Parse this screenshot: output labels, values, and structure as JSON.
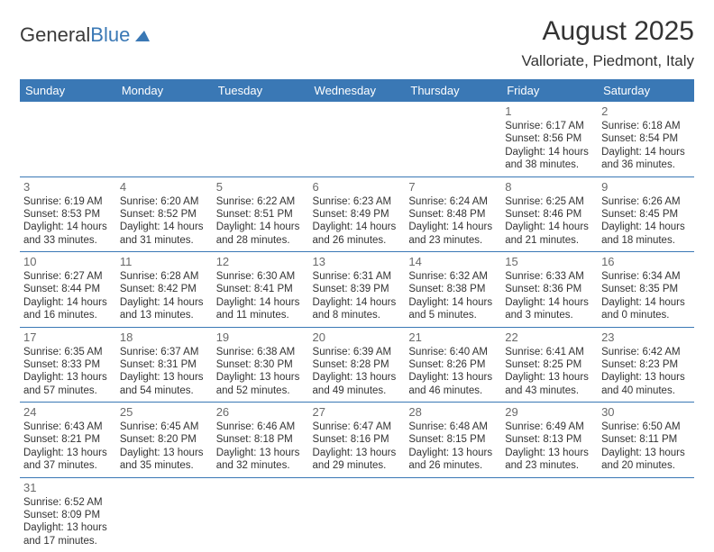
{
  "logo": {
    "text_dark": "General",
    "text_blue": "Blue"
  },
  "title": "August 2025",
  "location": "Valloriate, Piedmont, Italy",
  "colors": {
    "header_bg": "#3a78b5",
    "header_text": "#ffffff",
    "border": "#3a78b5",
    "daynum": "#6a6a6a",
    "body_text": "#333333",
    "logo_dark": "#3a3a3a",
    "logo_blue": "#3a78b5",
    "page_bg": "#ffffff"
  },
  "typography": {
    "title_fontsize": 30,
    "location_fontsize": 17,
    "weekday_fontsize": 13,
    "daynum_fontsize": 13,
    "cell_fontsize": 11.5,
    "font_family": "Arial"
  },
  "weekdays": [
    "Sunday",
    "Monday",
    "Tuesday",
    "Wednesday",
    "Thursday",
    "Friday",
    "Saturday"
  ],
  "weeks": [
    [
      null,
      null,
      null,
      null,
      null,
      {
        "n": "1",
        "sunrise": "Sunrise: 6:17 AM",
        "sunset": "Sunset: 8:56 PM",
        "daylight": "Daylight: 14 hours and 38 minutes."
      },
      {
        "n": "2",
        "sunrise": "Sunrise: 6:18 AM",
        "sunset": "Sunset: 8:54 PM",
        "daylight": "Daylight: 14 hours and 36 minutes."
      }
    ],
    [
      {
        "n": "3",
        "sunrise": "Sunrise: 6:19 AM",
        "sunset": "Sunset: 8:53 PM",
        "daylight": "Daylight: 14 hours and 33 minutes."
      },
      {
        "n": "4",
        "sunrise": "Sunrise: 6:20 AM",
        "sunset": "Sunset: 8:52 PM",
        "daylight": "Daylight: 14 hours and 31 minutes."
      },
      {
        "n": "5",
        "sunrise": "Sunrise: 6:22 AM",
        "sunset": "Sunset: 8:51 PM",
        "daylight": "Daylight: 14 hours and 28 minutes."
      },
      {
        "n": "6",
        "sunrise": "Sunrise: 6:23 AM",
        "sunset": "Sunset: 8:49 PM",
        "daylight": "Daylight: 14 hours and 26 minutes."
      },
      {
        "n": "7",
        "sunrise": "Sunrise: 6:24 AM",
        "sunset": "Sunset: 8:48 PM",
        "daylight": "Daylight: 14 hours and 23 minutes."
      },
      {
        "n": "8",
        "sunrise": "Sunrise: 6:25 AM",
        "sunset": "Sunset: 8:46 PM",
        "daylight": "Daylight: 14 hours and 21 minutes."
      },
      {
        "n": "9",
        "sunrise": "Sunrise: 6:26 AM",
        "sunset": "Sunset: 8:45 PM",
        "daylight": "Daylight: 14 hours and 18 minutes."
      }
    ],
    [
      {
        "n": "10",
        "sunrise": "Sunrise: 6:27 AM",
        "sunset": "Sunset: 8:44 PM",
        "daylight": "Daylight: 14 hours and 16 minutes."
      },
      {
        "n": "11",
        "sunrise": "Sunrise: 6:28 AM",
        "sunset": "Sunset: 8:42 PM",
        "daylight": "Daylight: 14 hours and 13 minutes."
      },
      {
        "n": "12",
        "sunrise": "Sunrise: 6:30 AM",
        "sunset": "Sunset: 8:41 PM",
        "daylight": "Daylight: 14 hours and 11 minutes."
      },
      {
        "n": "13",
        "sunrise": "Sunrise: 6:31 AM",
        "sunset": "Sunset: 8:39 PM",
        "daylight": "Daylight: 14 hours and 8 minutes."
      },
      {
        "n": "14",
        "sunrise": "Sunrise: 6:32 AM",
        "sunset": "Sunset: 8:38 PM",
        "daylight": "Daylight: 14 hours and 5 minutes."
      },
      {
        "n": "15",
        "sunrise": "Sunrise: 6:33 AM",
        "sunset": "Sunset: 8:36 PM",
        "daylight": "Daylight: 14 hours and 3 minutes."
      },
      {
        "n": "16",
        "sunrise": "Sunrise: 6:34 AM",
        "sunset": "Sunset: 8:35 PM",
        "daylight": "Daylight: 14 hours and 0 minutes."
      }
    ],
    [
      {
        "n": "17",
        "sunrise": "Sunrise: 6:35 AM",
        "sunset": "Sunset: 8:33 PM",
        "daylight": "Daylight: 13 hours and 57 minutes."
      },
      {
        "n": "18",
        "sunrise": "Sunrise: 6:37 AM",
        "sunset": "Sunset: 8:31 PM",
        "daylight": "Daylight: 13 hours and 54 minutes."
      },
      {
        "n": "19",
        "sunrise": "Sunrise: 6:38 AM",
        "sunset": "Sunset: 8:30 PM",
        "daylight": "Daylight: 13 hours and 52 minutes."
      },
      {
        "n": "20",
        "sunrise": "Sunrise: 6:39 AM",
        "sunset": "Sunset: 8:28 PM",
        "daylight": "Daylight: 13 hours and 49 minutes."
      },
      {
        "n": "21",
        "sunrise": "Sunrise: 6:40 AM",
        "sunset": "Sunset: 8:26 PM",
        "daylight": "Daylight: 13 hours and 46 minutes."
      },
      {
        "n": "22",
        "sunrise": "Sunrise: 6:41 AM",
        "sunset": "Sunset: 8:25 PM",
        "daylight": "Daylight: 13 hours and 43 minutes."
      },
      {
        "n": "23",
        "sunrise": "Sunrise: 6:42 AM",
        "sunset": "Sunset: 8:23 PM",
        "daylight": "Daylight: 13 hours and 40 minutes."
      }
    ],
    [
      {
        "n": "24",
        "sunrise": "Sunrise: 6:43 AM",
        "sunset": "Sunset: 8:21 PM",
        "daylight": "Daylight: 13 hours and 37 minutes."
      },
      {
        "n": "25",
        "sunrise": "Sunrise: 6:45 AM",
        "sunset": "Sunset: 8:20 PM",
        "daylight": "Daylight: 13 hours and 35 minutes."
      },
      {
        "n": "26",
        "sunrise": "Sunrise: 6:46 AM",
        "sunset": "Sunset: 8:18 PM",
        "daylight": "Daylight: 13 hours and 32 minutes."
      },
      {
        "n": "27",
        "sunrise": "Sunrise: 6:47 AM",
        "sunset": "Sunset: 8:16 PM",
        "daylight": "Daylight: 13 hours and 29 minutes."
      },
      {
        "n": "28",
        "sunrise": "Sunrise: 6:48 AM",
        "sunset": "Sunset: 8:15 PM",
        "daylight": "Daylight: 13 hours and 26 minutes."
      },
      {
        "n": "29",
        "sunrise": "Sunrise: 6:49 AM",
        "sunset": "Sunset: 8:13 PM",
        "daylight": "Daylight: 13 hours and 23 minutes."
      },
      {
        "n": "30",
        "sunrise": "Sunrise: 6:50 AM",
        "sunset": "Sunset: 8:11 PM",
        "daylight": "Daylight: 13 hours and 20 minutes."
      }
    ],
    [
      {
        "n": "31",
        "sunrise": "Sunrise: 6:52 AM",
        "sunset": "Sunset: 8:09 PM",
        "daylight": "Daylight: 13 hours and 17 minutes."
      },
      null,
      null,
      null,
      null,
      null,
      null
    ]
  ]
}
